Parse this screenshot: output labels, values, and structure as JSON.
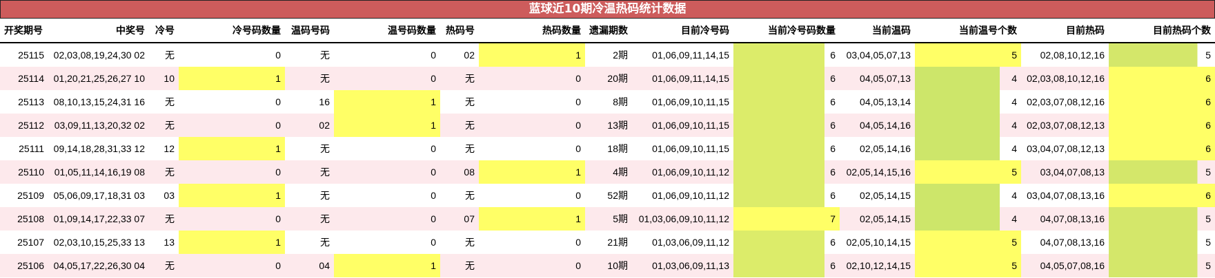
{
  "title": "蓝球近10期冷温热码统计数据",
  "colors": {
    "header": "#cd5c5c",
    "alt_row": "#fde9ec",
    "max_fill": "#ffff66",
    "green_fill_1": "#dcec6a",
    "green_fill_2": "#cde66a",
    "green_fill_3": "#d4e76a"
  },
  "columns": [
    "开奖期号",
    "中奖号",
    "冷号",
    "冷号码数量",
    "温码号码",
    "温号码数量",
    "热码号",
    "热码数量",
    "遗漏期数",
    "目前冷号码",
    "当前冷号码数量",
    "当前温码",
    "当前温号个数",
    "目前热码",
    "目前热码个数"
  ],
  "rows": [
    [
      "25115",
      "02,03,08,19,24,30 02",
      "无",
      "0",
      "无",
      "0",
      "02",
      "1",
      "2期",
      "01,06,09,11,14,15",
      "6",
      "03,04,05,07,13",
      "5",
      "02,08,10,12,16",
      "5"
    ],
    [
      "25114",
      "01,20,21,25,26,27 10",
      "10",
      "1",
      "无",
      "0",
      "无",
      "0",
      "20期",
      "01,06,09,11,14,15",
      "6",
      "04,05,07,13",
      "4",
      "02,03,08,10,12,16",
      "6"
    ],
    [
      "25113",
      "08,10,13,15,24,31 16",
      "无",
      "0",
      "16",
      "1",
      "无",
      "0",
      "8期",
      "01,06,09,10,11,15",
      "6",
      "04,05,13,14",
      "4",
      "02,03,07,08,12,16",
      "6"
    ],
    [
      "25112",
      "03,09,11,13,20,32 02",
      "无",
      "0",
      "02",
      "1",
      "无",
      "0",
      "13期",
      "01,06,09,10,11,15",
      "6",
      "04,05,14,16",
      "4",
      "02,03,07,08,12,13",
      "6"
    ],
    [
      "25111",
      "09,14,18,28,31,33 12",
      "12",
      "1",
      "无",
      "0",
      "无",
      "0",
      "18期",
      "01,06,09,10,11,15",
      "6",
      "02,05,14,16",
      "4",
      "03,04,07,08,12,13",
      "6"
    ],
    [
      "25110",
      "01,05,11,14,16,19 08",
      "无",
      "0",
      "无",
      "0",
      "08",
      "1",
      "4期",
      "01,06,09,10,11,12",
      "6",
      "02,05,14,15,16",
      "5",
      "03,04,07,08,13",
      "5"
    ],
    [
      "25109",
      "05,06,09,17,18,31 03",
      "03",
      "1",
      "无",
      "0",
      "无",
      "0",
      "52期",
      "01,06,09,10,11,12",
      "6",
      "02,05,14,15",
      "4",
      "03,04,07,08,13,16",
      "6"
    ],
    [
      "25108",
      "01,09,14,17,22,33 07",
      "无",
      "0",
      "无",
      "0",
      "07",
      "1",
      "5期",
      "01,03,06,09,10,11,12",
      "7",
      "02,05,14,15",
      "4",
      "04,07,08,13,16",
      "5"
    ],
    [
      "25107",
      "02,03,10,15,25,33 13",
      "13",
      "1",
      "无",
      "0",
      "无",
      "0",
      "21期",
      "01,03,06,09,11,12",
      "6",
      "02,05,10,14,15",
      "5",
      "04,07,08,13,16",
      "5"
    ],
    [
      "25106",
      "04,05,17,22,26,30 04",
      "无",
      "0",
      "04",
      "1",
      "无",
      "0",
      "10期",
      "01,03,06,09,11,13",
      "6",
      "02,10,12,14,15",
      "5",
      "04,05,07,08,16",
      "5"
    ]
  ]
}
